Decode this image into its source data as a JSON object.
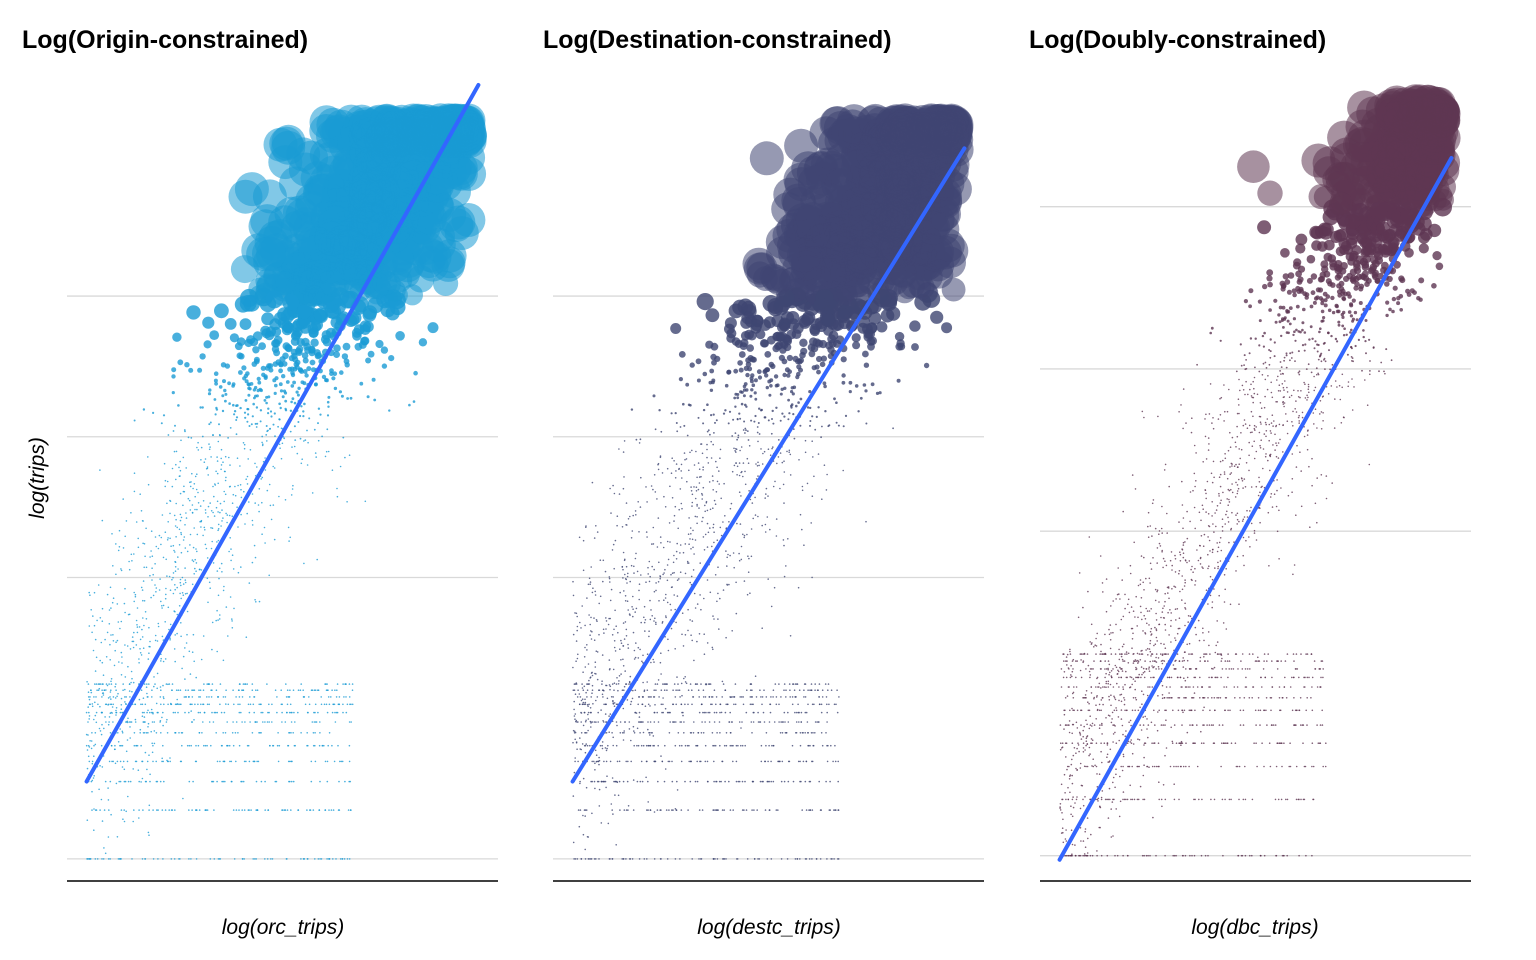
{
  "chart_data": [
    {
      "type": "scatter",
      "title": "Log(Origin-constrained)",
      "xlabel": "log(orc_trips)",
      "ylabel": "log(trips)",
      "color": "#1a9bd4",
      "fit_line_color": "#3366ff",
      "xlim": [
        0,
        11
      ],
      "ylim": [
        -0.3,
        11
      ],
      "gridlines_y": [
        0,
        4,
        6,
        8
      ],
      "x_tick_labels_shown": false,
      "y_tick_labels_shown": false,
      "fit_line": {
        "x": [
          0.5,
          10.5
        ],
        "y": [
          1.1,
          11.0
        ]
      },
      "approx_point_cloud": {
        "x_range": [
          0.5,
          10.5
        ],
        "y_range": [
          0,
          10.5
        ],
        "centre_offset_above_fit": 0.8,
        "spread": 1.2,
        "point_size": "proportional to trips"
      }
    },
    {
      "type": "scatter",
      "title": "Log(Destination-constrained)",
      "xlabel": "log(destc_trips)",
      "ylabel": "log(trips)",
      "color": "#3f4672",
      "fit_line_color": "#3366ff",
      "xlim": [
        0,
        11
      ],
      "ylim": [
        -0.3,
        11
      ],
      "gridlines_y": [
        0,
        4,
        6,
        8
      ],
      "x_tick_labels_shown": false,
      "y_tick_labels_shown": false,
      "fit_line": {
        "x": [
          0.5,
          10.5
        ],
        "y": [
          1.1,
          10.1
        ]
      },
      "approx_point_cloud": {
        "x_range": [
          0.5,
          10.5
        ],
        "y_range": [
          0,
          10.5
        ],
        "centre_offset_above_fit": 0.9,
        "spread": 1.2,
        "point_size": "proportional to trips"
      }
    },
    {
      "type": "scatter",
      "title": "Log(Doubly-constrained)",
      "xlabel": "log(dbc_trips)",
      "ylabel": "log(trips)",
      "color": "#5e3652",
      "fit_line_color": "#3366ff",
      "xlim": [
        0,
        11
      ],
      "ylim": [
        -0.3,
        9.5
      ],
      "gridlines_y": [
        0,
        4,
        6,
        8
      ],
      "x_tick_labels_shown": false,
      "y_tick_labels_shown": false,
      "fit_line": {
        "x": [
          0.5,
          10.5
        ],
        "y": [
          -0.05,
          8.6
        ]
      },
      "approx_point_cloud": {
        "x_range": [
          0.5,
          10.5
        ],
        "y_range": [
          0,
          9.3
        ],
        "centre_offset_above_fit": 0.8,
        "spread": 0.9,
        "point_size": "proportional to trips"
      }
    }
  ]
}
